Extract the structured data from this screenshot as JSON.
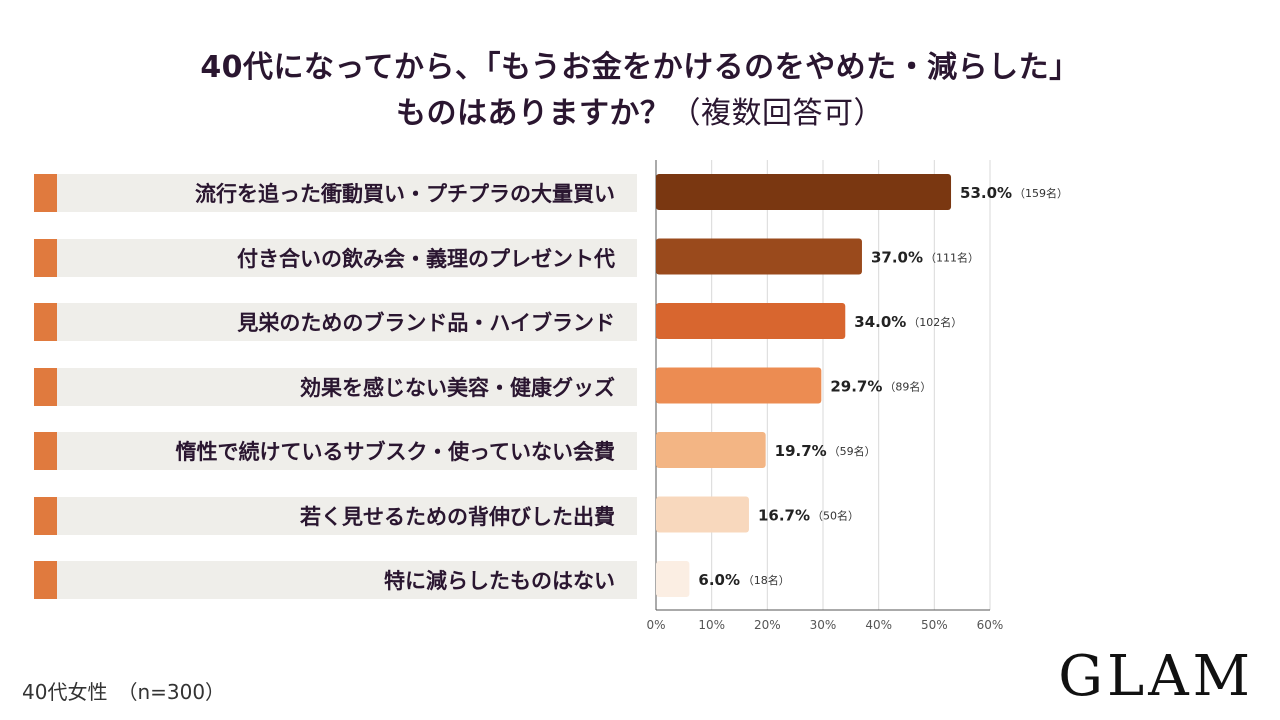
{
  "title_line1": "40代になってから、「もうお金をかけるのをやめた・減らした」",
  "title_line2_main": "ものはありますか？",
  "title_line2_paren": "（複数回答可）",
  "footer_sample": "40代女性　（n=300）",
  "logo_text": "GLAM",
  "colors": {
    "title": "#2a1630",
    "label_accent": "#e07a3e",
    "label_bg": "#efeeea",
    "grid": "#d9d9d9",
    "axis": "#555555"
  },
  "chart_data": {
    "type": "bar",
    "orientation": "horizontal",
    "categories": [
      "流行を追った衝動買い・プチプラの大量買い",
      "付き合いの飲み会・義理のプレゼント代",
      "見栄のためのブランド品・ハイブランド",
      "効果を感じない美容・健康グッズ",
      "惰性で続けているサブスク・使っていない会費",
      "若く見せるための背伸びした出費",
      "特に減らしたものはない"
    ],
    "values": [
      53.0,
      37.0,
      34.0,
      29.7,
      19.7,
      16.7,
      6.0
    ],
    "value_labels": [
      "53.0%",
      "37.0%",
      "34.0%",
      "29.7%",
      "19.7%",
      "16.7%",
      "6.0%"
    ],
    "count_labels": [
      "（159名）",
      "（111名）",
      "（102名）",
      "（89名）",
      "（59名）",
      "（50名）",
      "（18名）"
    ],
    "bar_colors": [
      "#7a3711",
      "#9a4a1c",
      "#d8662f",
      "#ec8c52",
      "#f3b584",
      "#f8d8bd",
      "#fbeee3"
    ],
    "xlim": [
      0,
      60
    ],
    "xticks": [
      0,
      10,
      20,
      30,
      40,
      50,
      60
    ],
    "xtick_labels": [
      "0%",
      "10%",
      "20%",
      "30%",
      "40%",
      "50%",
      "60%"
    ],
    "grid": true,
    "legend": "none"
  }
}
